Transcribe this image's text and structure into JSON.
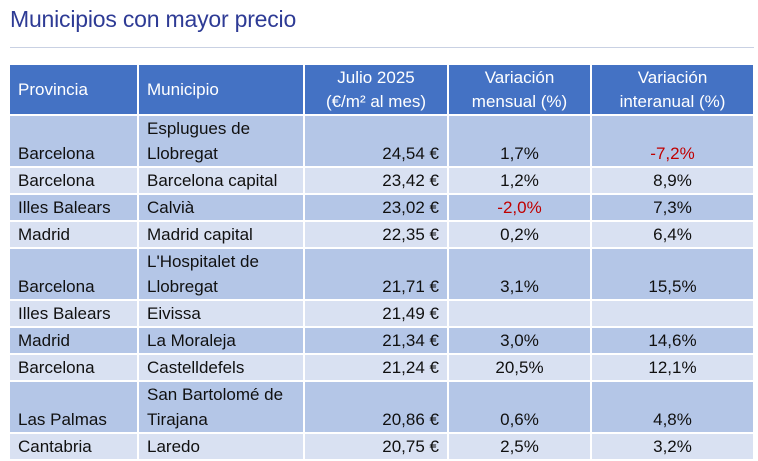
{
  "title": "Municipios con mayor precio",
  "headers": {
    "provincia": "Provincia",
    "municipio": "Municipio",
    "precio_l1": "Julio 2025",
    "precio_l2": "(€/m² al mes)",
    "mensual_l1": "Variación",
    "mensual_l2": "mensual (%)",
    "interanual_l1": "Variación",
    "interanual_l2": "interanual (%)"
  },
  "rows": [
    {
      "provincia": "Barcelona",
      "municipio": "Esplugues de Llobregat",
      "precio": "24,54 €",
      "mensual": "1,7%",
      "interanual": "-7,2%"
    },
    {
      "provincia": "Barcelona",
      "municipio": "Barcelona capital",
      "precio": "23,42 €",
      "mensual": "1,2%",
      "interanual": "8,9%"
    },
    {
      "provincia": "Illes Balears",
      "municipio": "Calvià",
      "precio": "23,02 €",
      "mensual": "-2,0%",
      "interanual": "7,3%"
    },
    {
      "provincia": "Madrid",
      "municipio": "Madrid capital",
      "precio": "22,35 €",
      "mensual": "0,2%",
      "interanual": "6,4%"
    },
    {
      "provincia": "Barcelona",
      "municipio": "L'Hospitalet de Llobregat",
      "precio": "21,71 €",
      "mensual": "3,1%",
      "interanual": "15,5%"
    },
    {
      "provincia": "Illes Balears",
      "municipio": "Eivissa",
      "precio": "21,49 €",
      "mensual": "",
      "interanual": ""
    },
    {
      "provincia": "Madrid",
      "municipio": "La Moraleja",
      "precio": "21,34 €",
      "mensual": "3,0%",
      "interanual": "14,6%"
    },
    {
      "provincia": "Barcelona",
      "municipio": "Castelldefels",
      "precio": "21,24 €",
      "mensual": "20,5%",
      "interanual": "12,1%"
    },
    {
      "provincia": "Las Palmas",
      "municipio": "San Bartolomé de Tirajana",
      "precio": "20,86 €",
      "mensual": "0,6%",
      "interanual": "4,8%"
    },
    {
      "provincia": "Cantabria",
      "municipio": "Laredo",
      "precio": "20,75 €",
      "mensual": "2,5%",
      "interanual": "3,2%"
    }
  ],
  "colors": {
    "title": "#2e3b95",
    "header_bg": "#4472c4",
    "row_dark": "#b4c6e7",
    "row_light": "#d9e1f2",
    "negative": "#c00000"
  }
}
